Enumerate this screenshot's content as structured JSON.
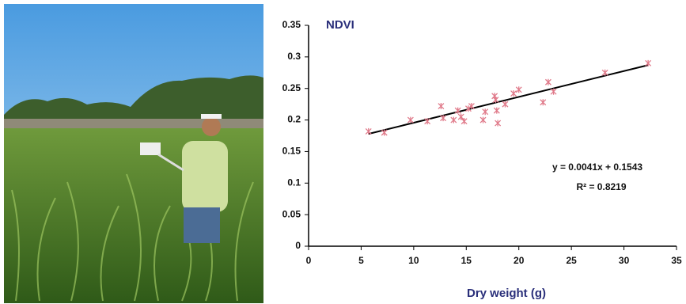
{
  "chart_data": {
    "type": "scatter",
    "title": "NDVI",
    "x_label": "Dry weight (g)",
    "annotations": [
      "y = 0.0041x + 0.1543",
      "R² = 0.8219"
    ],
    "xlim": [
      0,
      35
    ],
    "xticks": [
      0,
      5,
      10,
      15,
      20,
      25,
      30,
      35
    ],
    "ylim": [
      0,
      0.35
    ],
    "yticks": [
      0,
      0.05,
      0.1,
      0.15,
      0.2,
      0.25,
      0.3,
      0.35
    ],
    "grid": false,
    "points": {
      "color": "#e07a8a",
      "x": [
        5.7,
        7.2,
        9.7,
        11.3,
        12.6,
        12.8,
        13.8,
        14.2,
        14.5,
        14.8,
        15.2,
        15.5,
        16.6,
        16.8,
        17.7,
        17.8,
        17.9,
        18.0,
        18.7,
        19.5,
        20.0,
        22.3,
        22.8,
        23.3,
        28.2,
        32.3
      ],
      "y": [
        0.182,
        0.18,
        0.2,
        0.198,
        0.222,
        0.203,
        0.2,
        0.215,
        0.205,
        0.198,
        0.218,
        0.222,
        0.2,
        0.213,
        0.238,
        0.232,
        0.215,
        0.195,
        0.225,
        0.242,
        0.248,
        0.228,
        0.26,
        0.245,
        0.275,
        0.29
      ]
    },
    "trendline": {
      "color": "#000000",
      "x": [
        5.7,
        32.3
      ],
      "y": [
        0.178,
        0.287
      ]
    }
  }
}
